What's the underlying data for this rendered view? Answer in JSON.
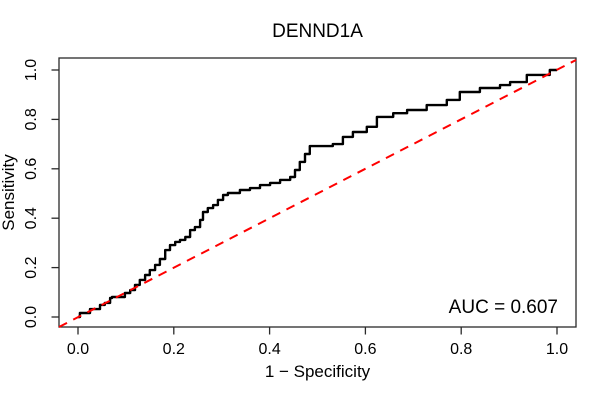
{
  "chart_data": {
    "type": "line",
    "subtype": "roc-curve",
    "title": "DENND1A",
    "xlabel": "1 − Specificity",
    "ylabel": "Sensitivity",
    "xlim": [
      0,
      1
    ],
    "ylim": [
      0,
      1
    ],
    "x_ticks": [
      "0.0",
      "0.2",
      "0.4",
      "0.6",
      "0.8",
      "1.0"
    ],
    "y_ticks": [
      "0.0",
      "0.2",
      "0.4",
      "0.6",
      "0.8",
      "1.0"
    ],
    "grid": false,
    "legend": "none",
    "annotation": "AUC = 0.607",
    "auc": 0.607,
    "colors": {
      "curve": "#000000",
      "reference_line": "#ff0000",
      "box": "#2a2a2a",
      "text": "#000000",
      "background": "#ffffff"
    },
    "series": [
      {
        "name": "ROC curve (DENND1A)",
        "style": "step",
        "color": "#000000",
        "points": [
          [
            0.0,
            0.0
          ],
          [
            0.004,
            0.016
          ],
          [
            0.021,
            0.016
          ],
          [
            0.025,
            0.032
          ],
          [
            0.042,
            0.032
          ],
          [
            0.046,
            0.049
          ],
          [
            0.056,
            0.057
          ],
          [
            0.067,
            0.077
          ],
          [
            0.071,
            0.081
          ],
          [
            0.094,
            0.081
          ],
          [
            0.098,
            0.097
          ],
          [
            0.109,
            0.109
          ],
          [
            0.119,
            0.13
          ],
          [
            0.129,
            0.15
          ],
          [
            0.14,
            0.17
          ],
          [
            0.15,
            0.19
          ],
          [
            0.161,
            0.211
          ],
          [
            0.171,
            0.235
          ],
          [
            0.182,
            0.271
          ],
          [
            0.192,
            0.291
          ],
          [
            0.203,
            0.304
          ],
          [
            0.213,
            0.312
          ],
          [
            0.224,
            0.324
          ],
          [
            0.234,
            0.352
          ],
          [
            0.244,
            0.364
          ],
          [
            0.255,
            0.393
          ],
          [
            0.261,
            0.425
          ],
          [
            0.271,
            0.441
          ],
          [
            0.282,
            0.453
          ],
          [
            0.292,
            0.474
          ],
          [
            0.303,
            0.494
          ],
          [
            0.313,
            0.502
          ],
          [
            0.338,
            0.514
          ],
          [
            0.359,
            0.522
          ],
          [
            0.38,
            0.534
          ],
          [
            0.401,
            0.543
          ],
          [
            0.422,
            0.555
          ],
          [
            0.443,
            0.567
          ],
          [
            0.453,
            0.595
          ],
          [
            0.463,
            0.628
          ],
          [
            0.474,
            0.66
          ],
          [
            0.484,
            0.692
          ],
          [
            0.51,
            0.692
          ],
          [
            0.532,
            0.7
          ],
          [
            0.553,
            0.729
          ],
          [
            0.574,
            0.749
          ],
          [
            0.603,
            0.77
          ],
          [
            0.624,
            0.81
          ],
          [
            0.658,
            0.825
          ],
          [
            0.687,
            0.838
          ],
          [
            0.728,
            0.858
          ],
          [
            0.77,
            0.879
          ],
          [
            0.797,
            0.911
          ],
          [
            0.839,
            0.927
          ],
          [
            0.881,
            0.939
          ],
          [
            0.902,
            0.951
          ],
          [
            0.933,
            0.951
          ],
          [
            0.937,
            0.98
          ],
          [
            0.965,
            0.98
          ],
          [
            0.985,
            1.0
          ],
          [
            1.0,
            1.0
          ]
        ]
      },
      {
        "name": "chance reference diagonal",
        "style": "dashed",
        "color": "#ff0000",
        "points": [
          [
            0,
            0
          ],
          [
            1,
            1
          ]
        ]
      }
    ]
  }
}
